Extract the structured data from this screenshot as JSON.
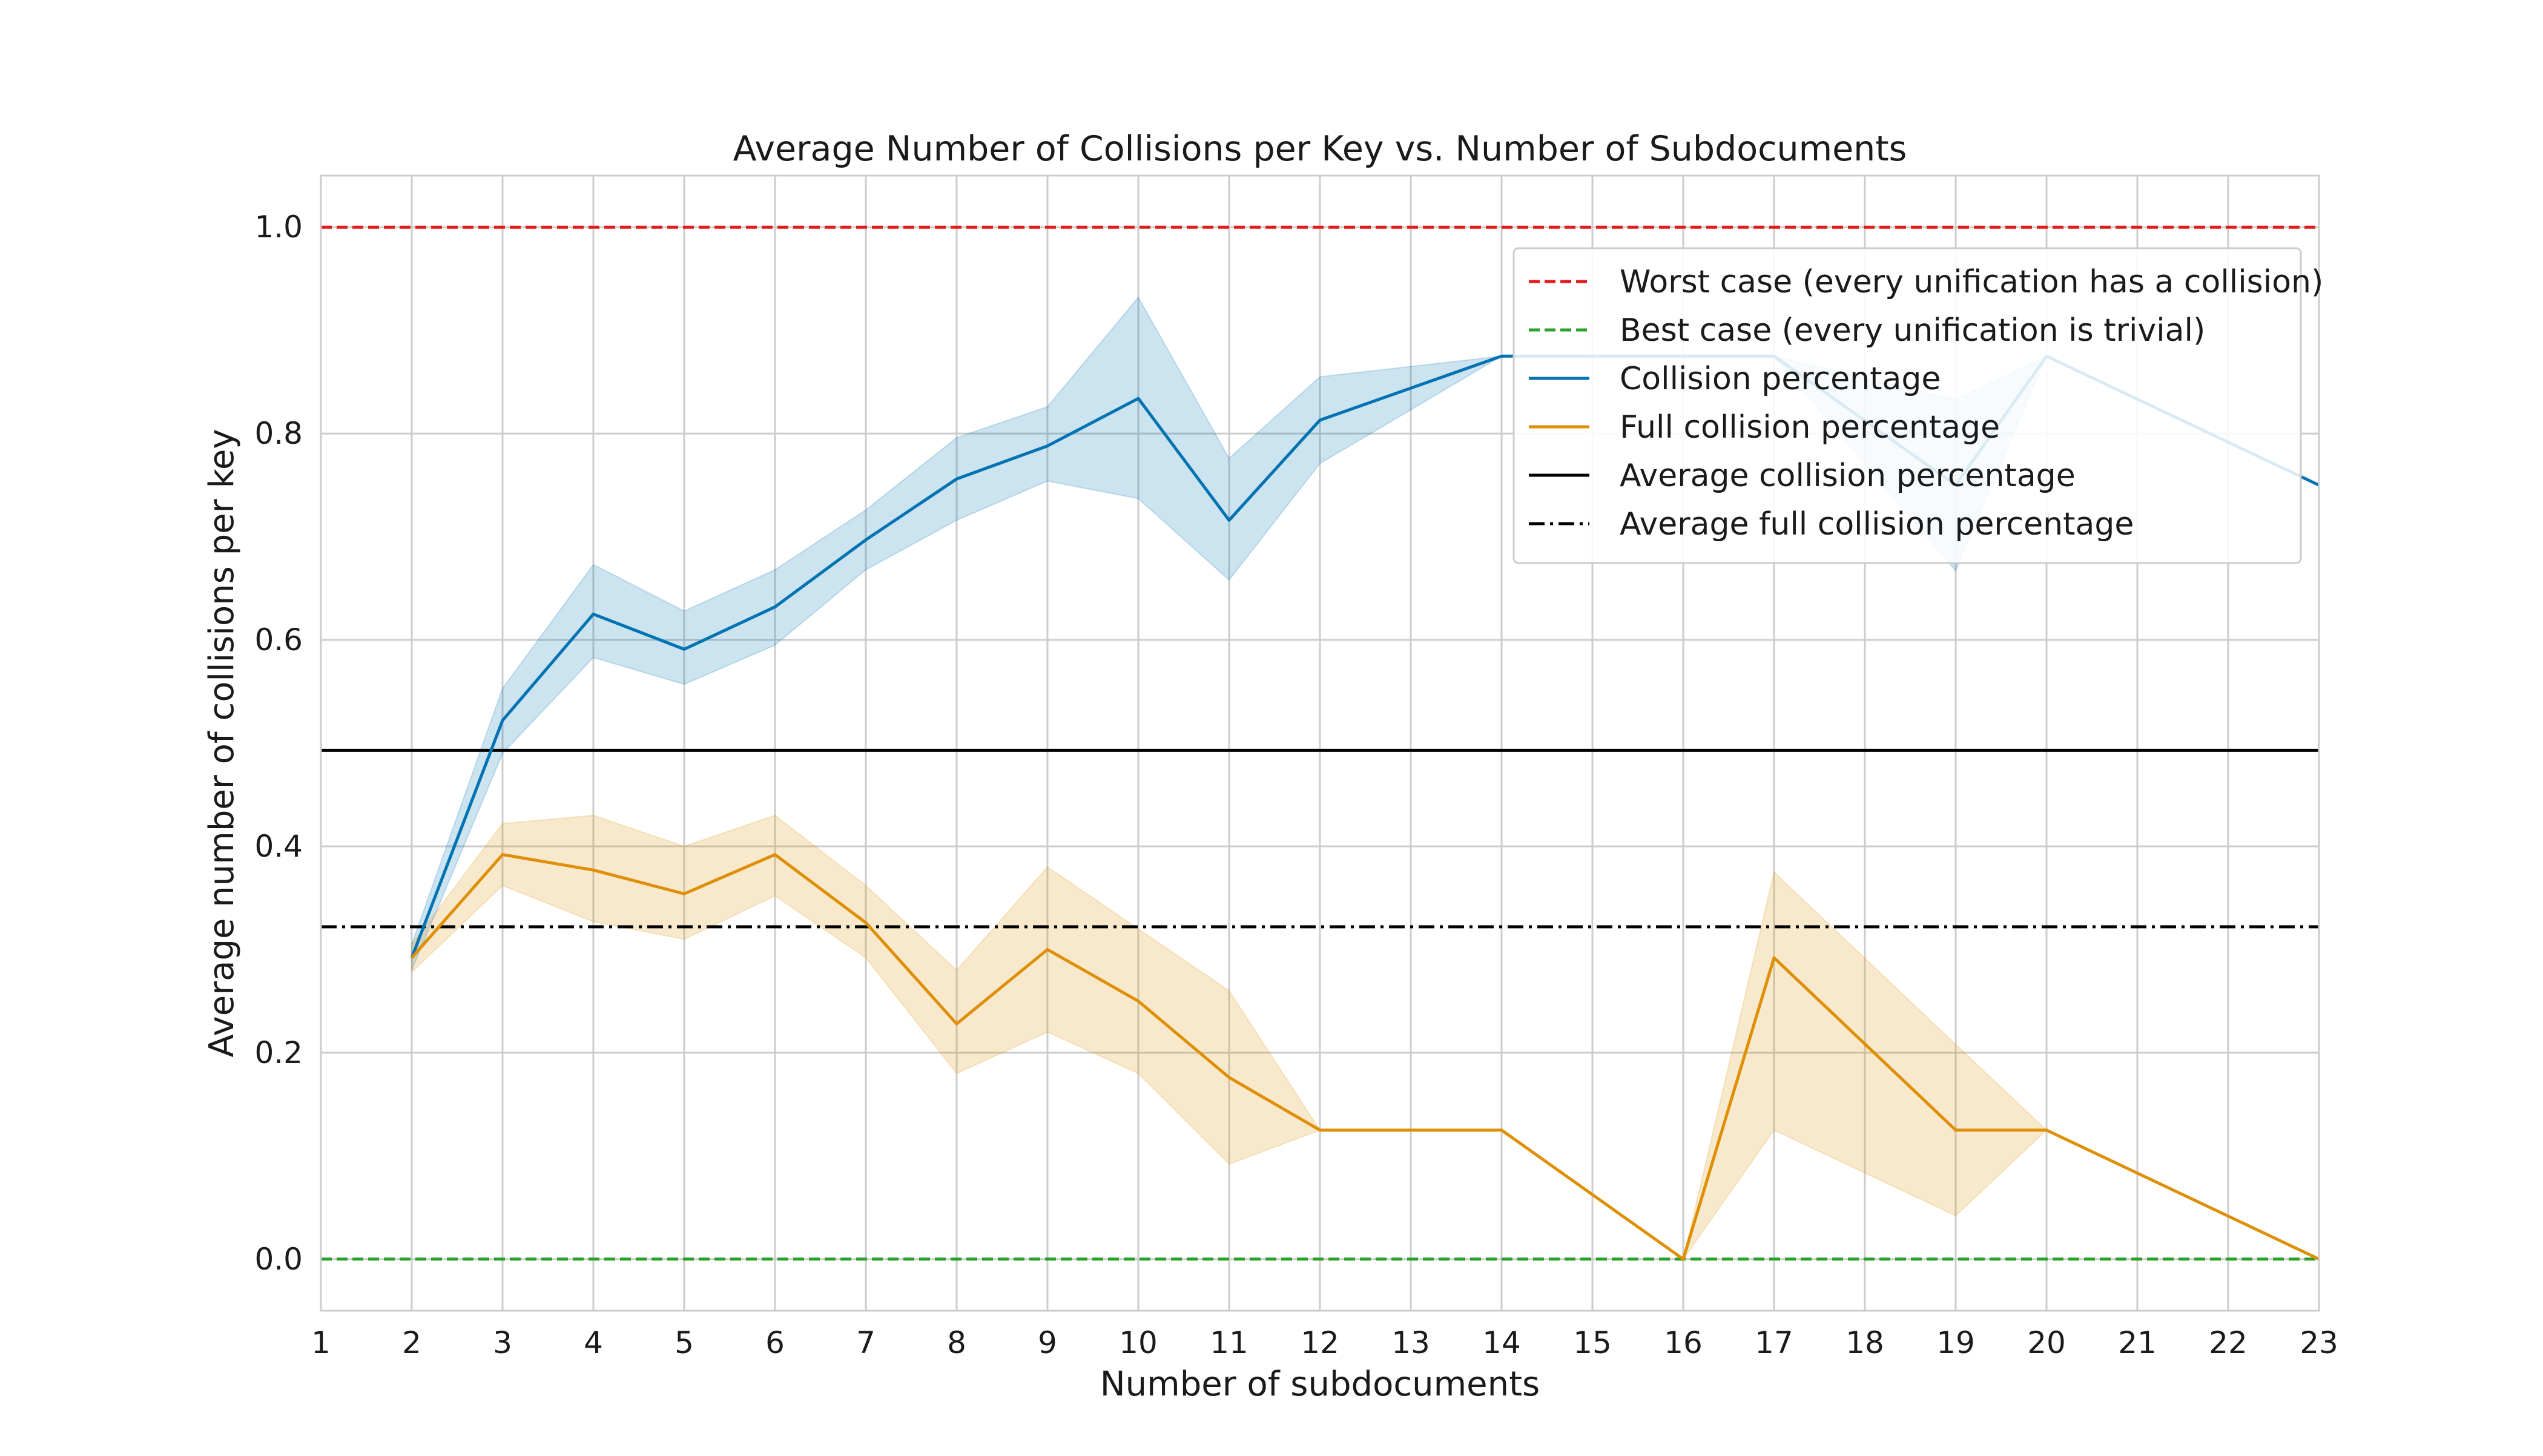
{
  "chart_data": {
    "type": "line",
    "title": "Average Number of Collisions per Key vs. Number of Subdocuments",
    "xlabel": "Number of subdocuments",
    "ylabel": "Average number of collisions per key",
    "xlim": [
      1,
      23
    ],
    "ylim": [
      -0.05,
      1.05
    ],
    "x_ticks": [
      1,
      2,
      3,
      4,
      5,
      6,
      7,
      8,
      9,
      10,
      11,
      12,
      13,
      14,
      15,
      16,
      17,
      18,
      19,
      20,
      21,
      22,
      23
    ],
    "y_ticks": [
      0.0,
      0.2,
      0.4,
      0.6,
      0.8,
      1.0
    ],
    "y_tick_labels": [
      "0.0",
      "0.2",
      "0.4",
      "0.6",
      "0.8",
      "1.0"
    ],
    "grid": true,
    "legend_position": "top-right",
    "reference_lines": [
      {
        "name": "Worst case (every unification has a collision)",
        "y": 1.0,
        "color": "#e41a1c",
        "style": "dashed"
      },
      {
        "name": "Best case (every unification is trivial)",
        "y": 0.0,
        "color": "#2ca02c",
        "style": "dashed"
      },
      {
        "name": "Average collision percentage",
        "y": 0.493,
        "color": "#000000",
        "style": "solid"
      },
      {
        "name": "Average full collision percentage",
        "y": 0.322,
        "color": "#000000",
        "style": "dashdot"
      }
    ],
    "series": [
      {
        "name": "Collision percentage",
        "color": "#0173b2",
        "x": [
          2,
          3,
          4,
          5,
          6,
          7,
          8,
          9,
          10,
          11,
          12,
          14,
          17,
          19,
          20,
          23
        ],
        "y": [
          0.292,
          0.522,
          0.625,
          0.591,
          0.632,
          0.697,
          0.756,
          0.788,
          0.834,
          0.716,
          0.813,
          0.875,
          0.875,
          0.75,
          0.875,
          0.75
        ],
        "ci_low": [
          0.28,
          0.49,
          0.583,
          0.557,
          0.595,
          0.668,
          0.716,
          0.754,
          0.737,
          0.658,
          0.771,
          0.875,
          0.875,
          0.667,
          0.875,
          0.75
        ],
        "ci_high": [
          0.305,
          0.553,
          0.673,
          0.628,
          0.668,
          0.726,
          0.796,
          0.826,
          0.932,
          0.776,
          0.855,
          0.875,
          0.875,
          0.833,
          0.875,
          0.75
        ]
      },
      {
        "name": "Full collision percentage",
        "color": "#de8f05",
        "x": [
          2,
          3,
          4,
          5,
          6,
          7,
          8,
          9,
          10,
          11,
          12,
          14,
          16,
          17,
          19,
          20,
          23
        ],
        "y": [
          0.292,
          0.392,
          0.377,
          0.354,
          0.392,
          0.326,
          0.228,
          0.3,
          0.25,
          0.176,
          0.125,
          0.125,
          0.0,
          0.292,
          0.125,
          0.125,
          0.0
        ],
        "ci_low": [
          0.278,
          0.362,
          0.327,
          0.31,
          0.352,
          0.292,
          0.18,
          0.22,
          0.18,
          0.092,
          0.125,
          0.125,
          0.0,
          0.125,
          0.042,
          0.125,
          0.0
        ],
        "ci_high": [
          0.305,
          0.422,
          0.43,
          0.4,
          0.43,
          0.362,
          0.28,
          0.38,
          0.32,
          0.26,
          0.125,
          0.125,
          0.0,
          0.375,
          0.208,
          0.125,
          0.0
        ]
      }
    ],
    "legend": [
      {
        "label": "Worst case (every unification has a collision)",
        "color": "#e41a1c",
        "style": "dashed"
      },
      {
        "label": "Best case (every unification is trivial)",
        "color": "#2ca02c",
        "style": "dashed"
      },
      {
        "label": "Collision percentage",
        "color": "#0173b2",
        "style": "solid"
      },
      {
        "label": "Full collision percentage",
        "color": "#de8f05",
        "style": "solid"
      },
      {
        "label": "Average collision percentage",
        "color": "#000000",
        "style": "solid"
      },
      {
        "label": "Average full collision percentage",
        "color": "#000000",
        "style": "dashdot"
      }
    ]
  }
}
